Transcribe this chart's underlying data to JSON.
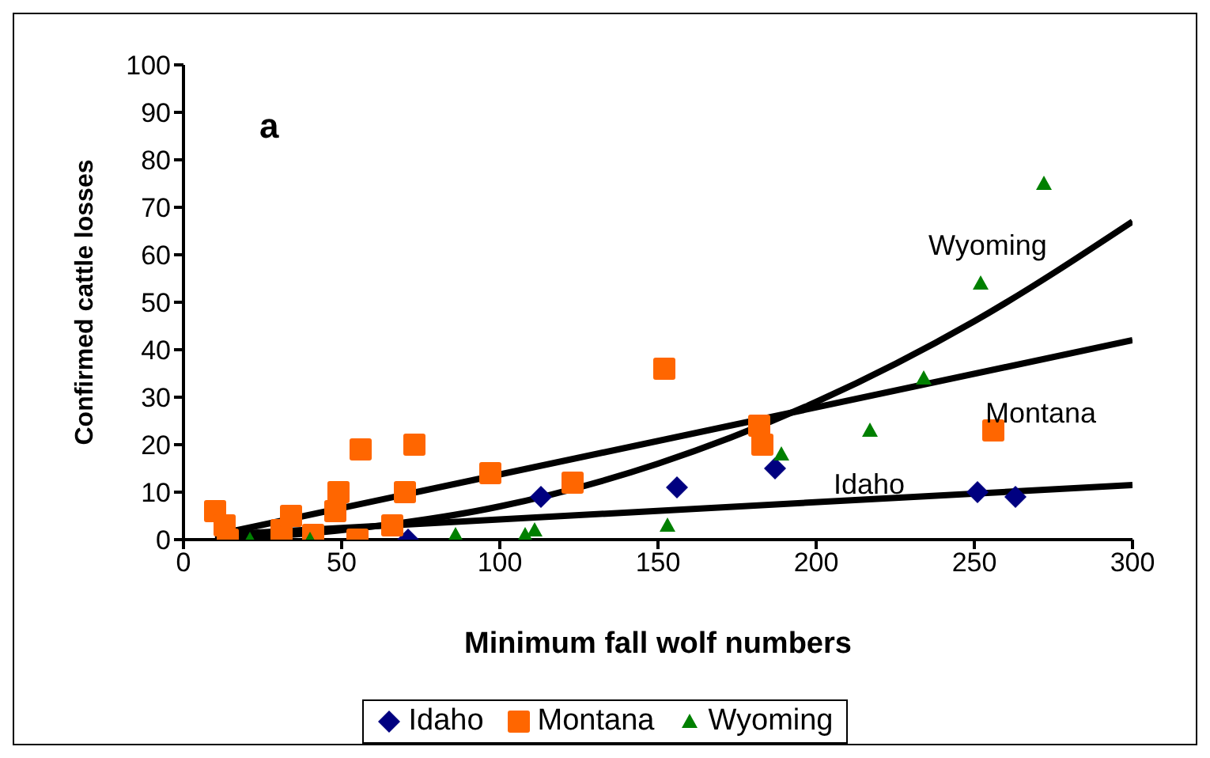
{
  "chart_data": {
    "type": "scatter",
    "xlabel": "Minimum fall wolf numbers",
    "ylabel": "Confirmed cattle losses",
    "xlim": [
      0,
      300
    ],
    "xticks": [
      0,
      50,
      100,
      150,
      200,
      250,
      300
    ],
    "ylim": [
      0,
      100
    ],
    "yticks": [
      0,
      10,
      20,
      30,
      40,
      50,
      60,
      70,
      80,
      90,
      100
    ],
    "grid": false,
    "legend": "bottom",
    "annotations": [
      "a",
      "Wyoming",
      "Montana",
      "Idaho"
    ],
    "series": [
      {
        "name": "Idaho",
        "color": "#000080",
        "marker": "diamond",
        "x": [
          71,
          113,
          156,
          187,
          251,
          263
        ],
        "values": [
          0,
          9,
          11,
          15,
          10,
          9
        ]
      },
      {
        "name": "Montana",
        "color": "#ff6600",
        "marker": "square",
        "x": [
          10,
          13,
          14,
          31,
          34,
          41,
          48,
          49,
          55,
          56,
          66,
          70,
          73,
          97,
          123,
          152,
          182,
          183,
          256
        ],
        "values": [
          6,
          3,
          0,
          2,
          5,
          1,
          6,
          10,
          0,
          19,
          3,
          10,
          20,
          14,
          12,
          36,
          24,
          20,
          23
        ]
      },
      {
        "name": "Wyoming",
        "color": "#008000",
        "marker": "triangle",
        "x": [
          21,
          40,
          86,
          108,
          111,
          153,
          189,
          217,
          234,
          252,
          272
        ],
        "values": [
          0,
          0,
          1,
          1,
          2,
          3,
          18,
          23,
          34,
          54,
          75
        ]
      },
      {
        "type": "line",
        "color": "#000000",
        "x": [
          10,
          300
        ],
        "values": [
          1,
          11.5
        ]
      },
      {
        "type": "line",
        "color": "#000000",
        "x": [
          10,
          300
        ],
        "values": [
          1,
          42
        ]
      },
      {
        "type": "line",
        "color": "#000000",
        "x": [
          10,
          50,
          100,
          150,
          200,
          250,
          300
        ],
        "values": [
          0,
          2,
          7,
          16,
          29,
          46,
          67
        ]
      }
    ]
  }
}
